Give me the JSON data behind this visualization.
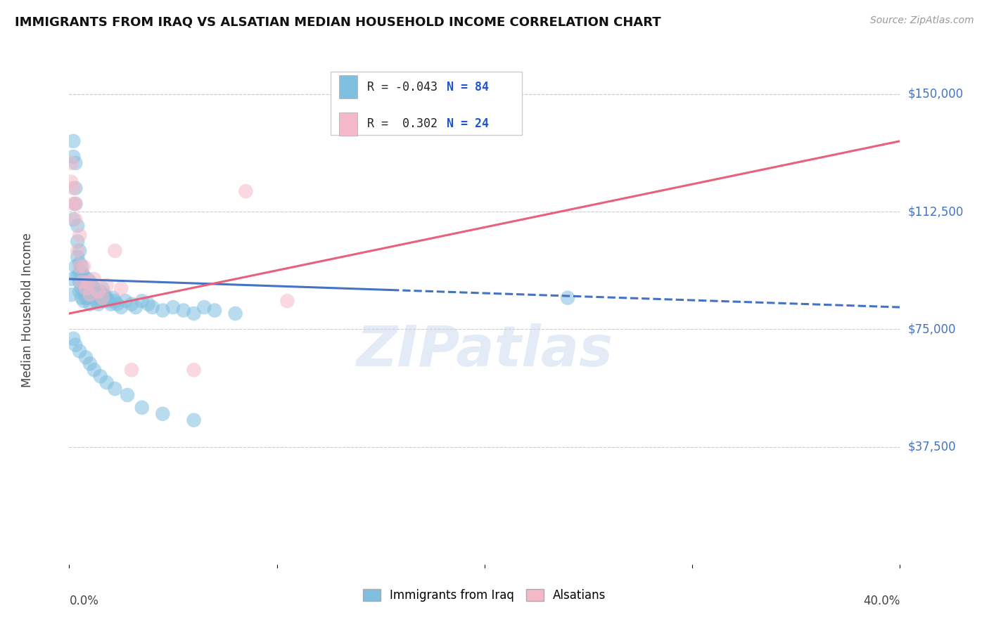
{
  "title": "IMMIGRANTS FROM IRAQ VS ALSATIAN MEDIAN HOUSEHOLD INCOME CORRELATION CHART",
  "source": "Source: ZipAtlas.com",
  "ylabel": "Median Household Income",
  "ytick_labels": [
    "$150,000",
    "$112,500",
    "$75,000",
    "$37,500"
  ],
  "ytick_values": [
    150000,
    112500,
    75000,
    37500
  ],
  "ymin": 0,
  "ymax": 162000,
  "xmin": 0.0,
  "xmax": 0.4,
  "legend_r1": "R = -0.043",
  "legend_n1": "N = 84",
  "legend_r2": "R =  0.302",
  "legend_n2": "N = 24",
  "color_blue": "#7fbfdf",
  "color_pink": "#f5b8c8",
  "color_blue_line": "#4472c4",
  "color_pink_line": "#e8607a",
  "watermark": "ZIPatlas",
  "blue_scatter_x": [
    0.001,
    0.001,
    0.002,
    0.002,
    0.002,
    0.003,
    0.003,
    0.003,
    0.003,
    0.004,
    0.004,
    0.004,
    0.004,
    0.005,
    0.005,
    0.005,
    0.005,
    0.005,
    0.006,
    0.006,
    0.006,
    0.006,
    0.006,
    0.007,
    0.007,
    0.007,
    0.007,
    0.008,
    0.008,
    0.008,
    0.009,
    0.009,
    0.009,
    0.01,
    0.01,
    0.01,
    0.01,
    0.011,
    0.011,
    0.012,
    0.012,
    0.013,
    0.013,
    0.014,
    0.014,
    0.015,
    0.015,
    0.016,
    0.016,
    0.017,
    0.018,
    0.019,
    0.02,
    0.021,
    0.022,
    0.023,
    0.025,
    0.027,
    0.03,
    0.032,
    0.035,
    0.038,
    0.04,
    0.045,
    0.05,
    0.055,
    0.06,
    0.065,
    0.07,
    0.08,
    0.002,
    0.003,
    0.005,
    0.008,
    0.01,
    0.012,
    0.015,
    0.018,
    0.022,
    0.028,
    0.035,
    0.045,
    0.06,
    0.24
  ],
  "blue_scatter_y": [
    91000,
    86000,
    135000,
    130000,
    110000,
    128000,
    120000,
    115000,
    95000,
    108000,
    103000,
    98000,
    92000,
    100000,
    96000,
    93000,
    90000,
    87000,
    95000,
    93000,
    90000,
    88000,
    85000,
    92000,
    89000,
    87000,
    84000,
    91000,
    88000,
    85000,
    91000,
    88000,
    85000,
    90000,
    88000,
    86000,
    83000,
    89000,
    86000,
    88000,
    85000,
    87000,
    84000,
    86000,
    83000,
    87000,
    85000,
    88000,
    84000,
    86000,
    85000,
    84000,
    83000,
    85000,
    84000,
    83000,
    82000,
    84000,
    83000,
    82000,
    84000,
    83000,
    82000,
    81000,
    82000,
    81000,
    80000,
    82000,
    81000,
    80000,
    72000,
    70000,
    68000,
    66000,
    64000,
    62000,
    60000,
    58000,
    56000,
    54000,
    50000,
    48000,
    46000,
    85000
  ],
  "pink_scatter_x": [
    0.001,
    0.001,
    0.002,
    0.002,
    0.003,
    0.003,
    0.004,
    0.005,
    0.005,
    0.006,
    0.007,
    0.008,
    0.009,
    0.01,
    0.012,
    0.014,
    0.016,
    0.018,
    0.022,
    0.025,
    0.03,
    0.06,
    0.085,
    0.105
  ],
  "pink_scatter_y": [
    128000,
    122000,
    120000,
    115000,
    115000,
    110000,
    100000,
    105000,
    95000,
    90000,
    95000,
    88000,
    90000,
    86000,
    91000,
    87000,
    85000,
    89000,
    100000,
    88000,
    62000,
    62000,
    119000,
    84000
  ],
  "blue_line_x": [
    0.0,
    0.155
  ],
  "blue_line_y": [
    91000,
    87500
  ],
  "dashed_line_x": [
    0.155,
    0.4
  ],
  "dashed_line_y": [
    87500,
    82000
  ],
  "pink_line_x": [
    0.0,
    0.4
  ],
  "pink_line_y": [
    80000,
    135000
  ]
}
